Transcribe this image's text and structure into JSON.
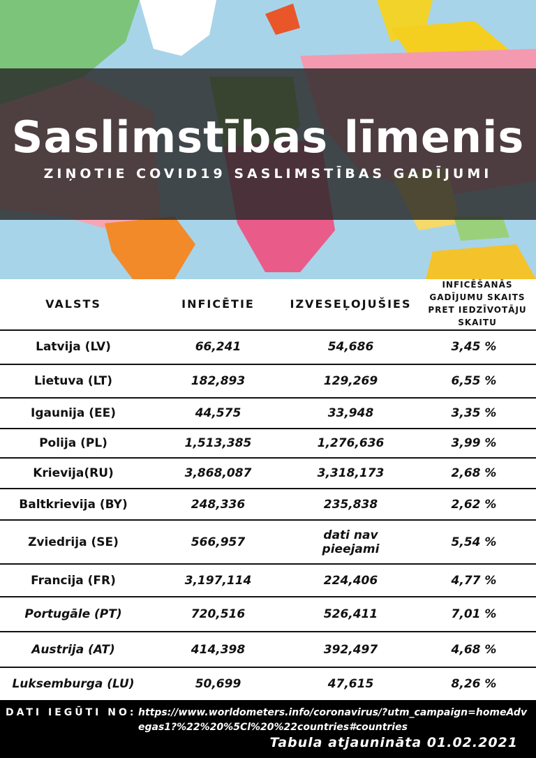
{
  "header": {
    "title": "Saslimstības līmenis",
    "subtitle": "ZIŅOTIE COVID19 SASLIMSTĪBAS GADĪJUMI"
  },
  "table": {
    "columns": [
      "VALSTS",
      "INFICĒTIE",
      "IZVESEĻOJUŠIES",
      "INFICĒŠANĀS GADĪJUMU SKAITS PRET IEDZĪVOTĀJU SKAITU"
    ],
    "rows": [
      [
        "Latvija (LV)",
        "66,241",
        "54,686",
        "3,45 %"
      ],
      [
        "Lietuva (LT)",
        "182,893",
        "129,269",
        "6,55 %"
      ],
      [
        "Igaunija (EE)",
        "44,575",
        "33,948",
        "3,35 %"
      ],
      [
        "Polija (PL)",
        "1,513,385",
        "1,276,636",
        "3,99 %"
      ],
      [
        "Krievija(RU)",
        "3,868,087",
        "3,318,173",
        "2,68 %"
      ],
      [
        "Baltkrievija (BY)",
        "248,336",
        "235,838",
        "2,62 %"
      ],
      [
        "Zviedrija (SE)",
        "566,957",
        "dati nav pieejami",
        "5,54 %"
      ],
      [
        "Francija (FR)",
        "3,197,114",
        "224,406",
        "4,77 %"
      ],
      [
        "Portugāle (PT)",
        "720,516",
        "526,411",
        "7,01 %"
      ],
      [
        "Austrija (AT)",
        "414,398",
        "392,497",
        "4,68 %"
      ],
      [
        "Luksemburga (LU)",
        "50,699",
        "47,615",
        "8,26 %"
      ]
    ]
  },
  "footer": {
    "source_label": "DATI IEGŪTI NO:",
    "source_url": "https://www.worldometers.info/coronavirus/?utm_campaign=homeAdvegas1?%22%20%5Cl%20%22countries#countries",
    "updated": "Tabula atjaunināta 01.02.2021"
  }
}
